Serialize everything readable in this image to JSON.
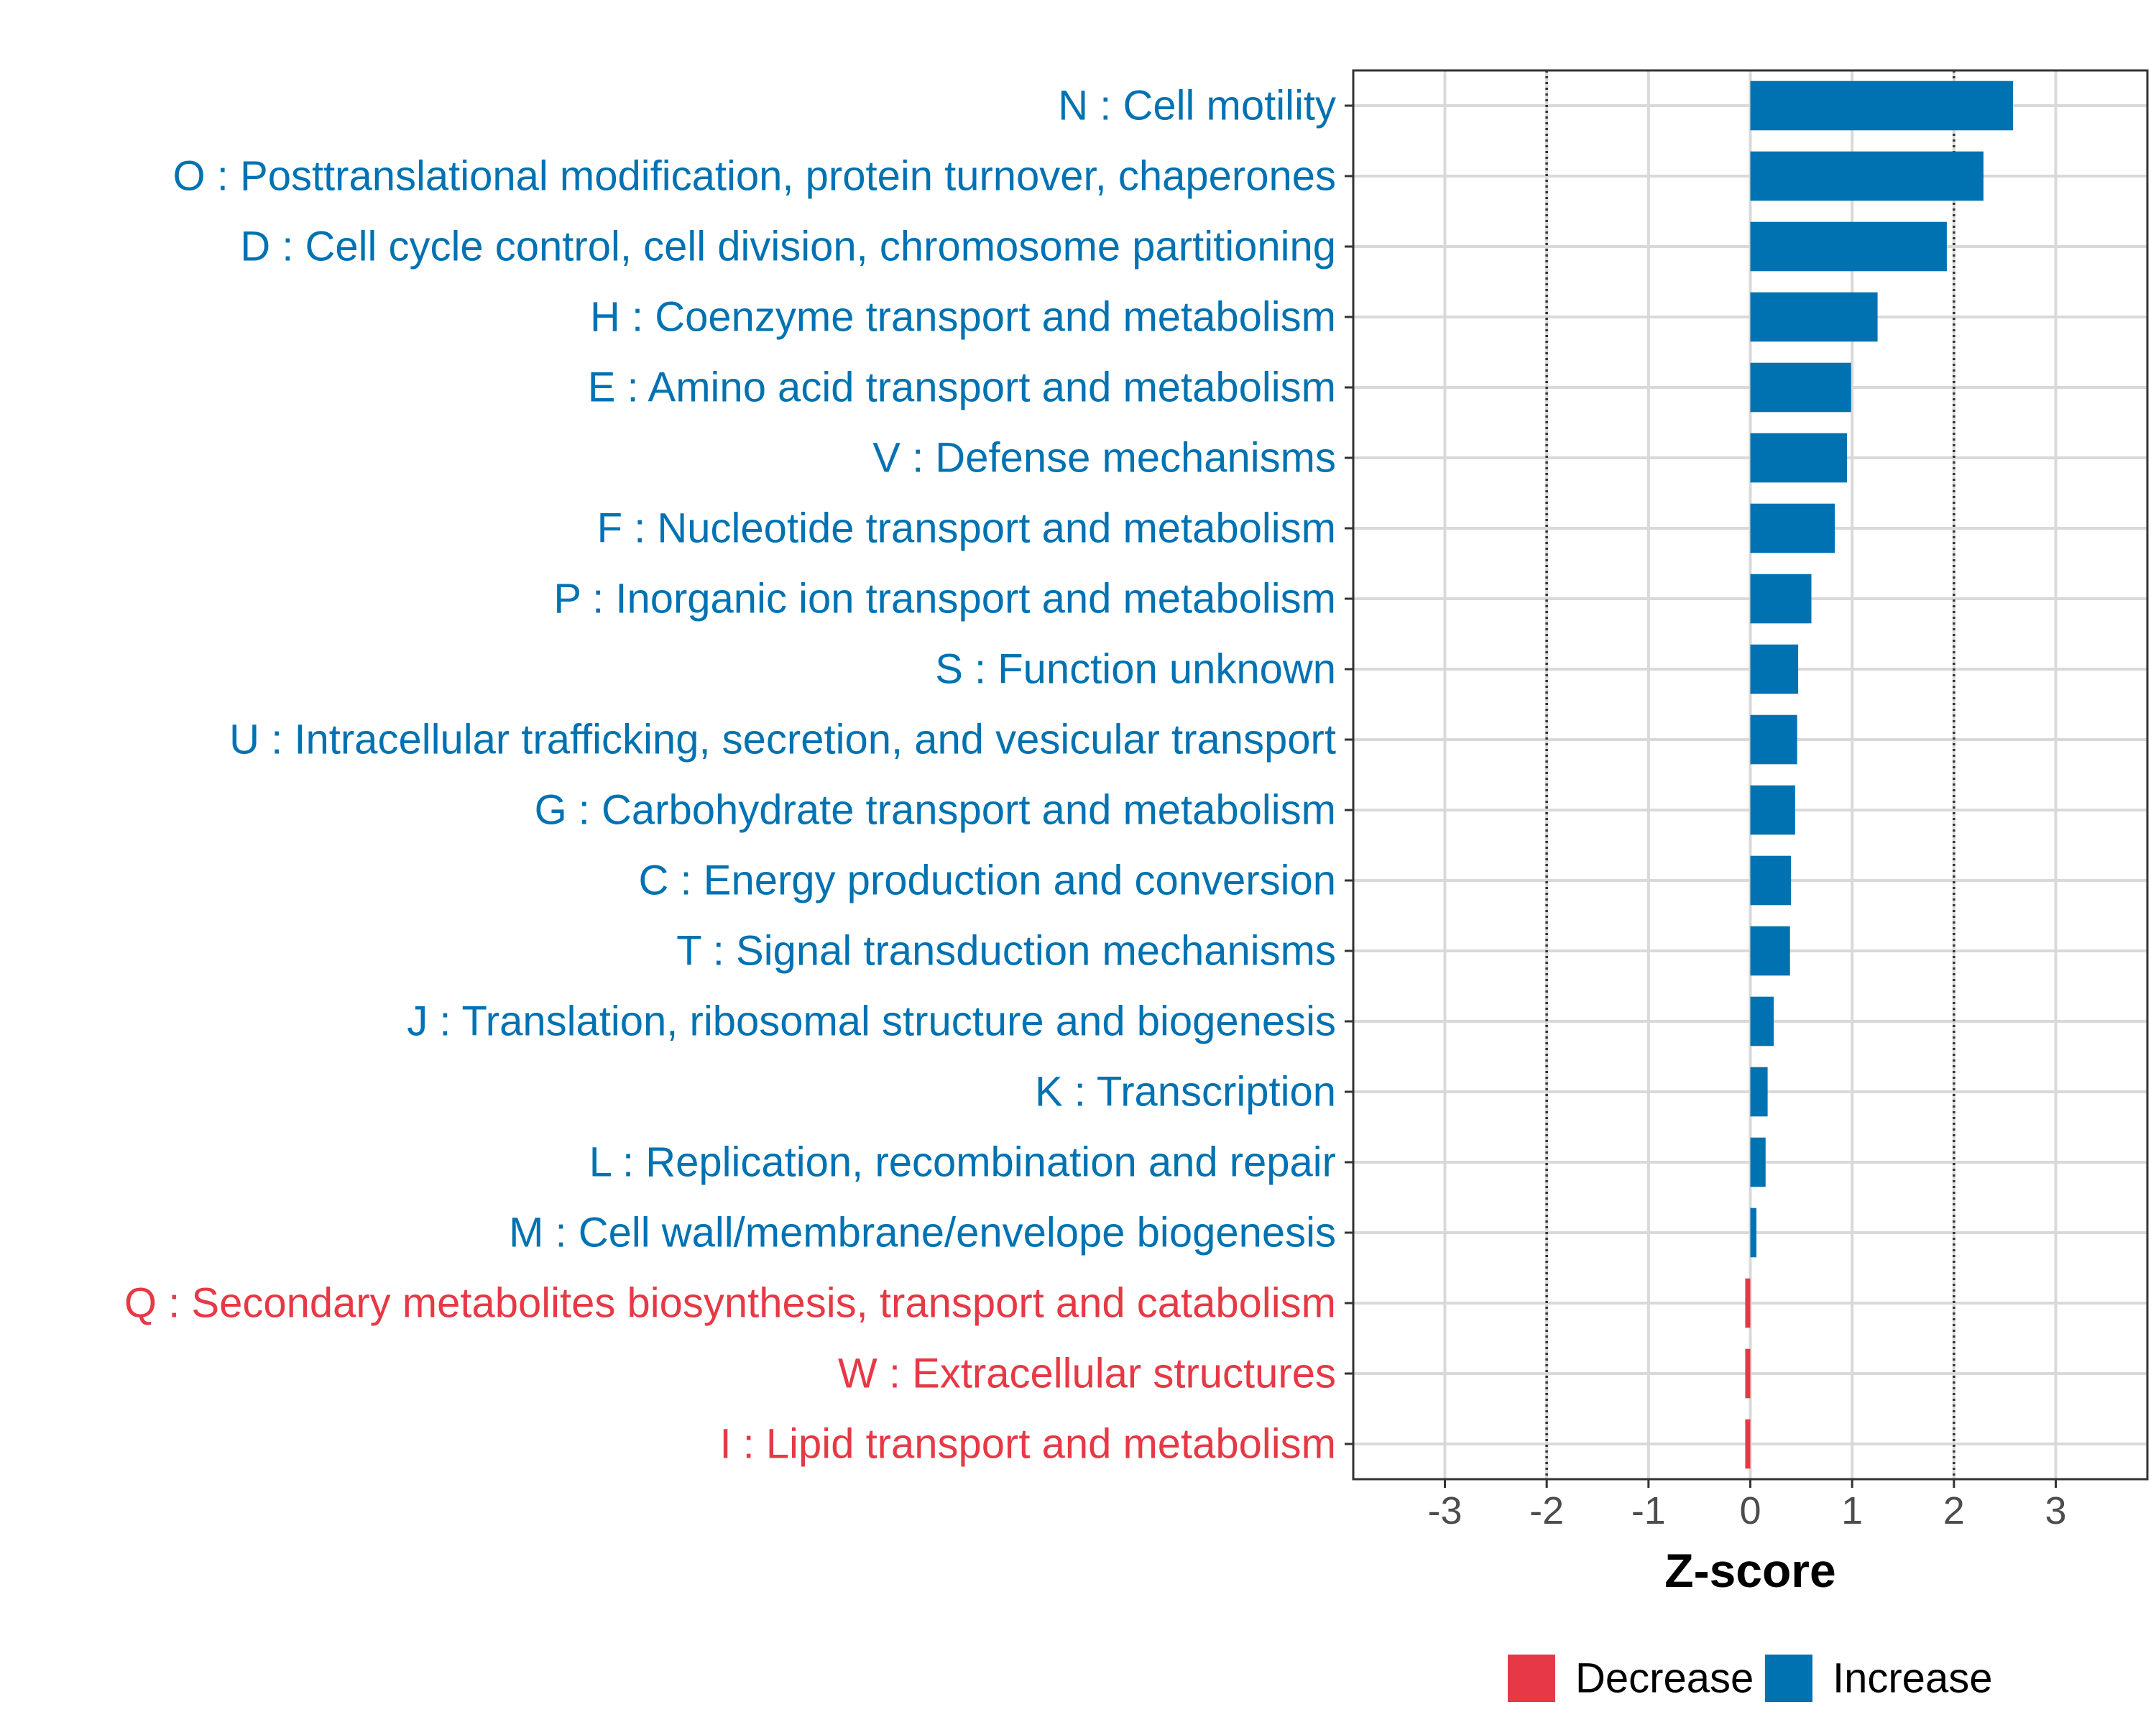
{
  "chart_data": {
    "type": "bar",
    "orientation": "horizontal",
    "categories": [
      "N : Cell motility",
      "O : Posttranslational modification, protein turnover, chaperones",
      "D : Cell cycle control, cell division, chromosome partitioning",
      "H : Coenzyme transport and metabolism",
      "E : Amino acid transport and metabolism",
      "V : Defense mechanisms",
      "F : Nucleotide transport and metabolism",
      "P : Inorganic ion transport and metabolism",
      "S : Function unknown",
      "U : Intracellular trafficking, secretion, and vesicular transport",
      "G : Carbohydrate transport and metabolism",
      "C : Energy production and conversion",
      "T : Signal transduction mechanisms",
      "J : Translation, ribosomal structure and biogenesis",
      "K : Transcription",
      "L : Replication, recombination and repair",
      "M : Cell wall/membrane/envelope biogenesis",
      "Q : Secondary metabolites biosynthesis, transport and catabolism",
      "W : Extracellular structures",
      "I : Lipid transport and metabolism"
    ],
    "values": [
      2.58,
      2.29,
      1.93,
      1.25,
      0.99,
      0.95,
      0.83,
      0.6,
      0.47,
      0.46,
      0.44,
      0.4,
      0.39,
      0.23,
      0.17,
      0.15,
      0.06,
      -0.05,
      -0.05,
      -0.05
    ],
    "groups": [
      "Increase",
      "Increase",
      "Increase",
      "Increase",
      "Increase",
      "Increase",
      "Increase",
      "Increase",
      "Increase",
      "Increase",
      "Increase",
      "Increase",
      "Increase",
      "Increase",
      "Increase",
      "Increase",
      "Increase",
      "Decrease",
      "Decrease",
      "Decrease"
    ],
    "xlabel": "Z-score",
    "ylabel": "",
    "xlim": [
      -3.9,
      3.9
    ],
    "xticks": [
      -3,
      -2,
      -1,
      0,
      1,
      2,
      3
    ],
    "xtick_labels": [
      "-3",
      "-2",
      "-1",
      "0",
      "1",
      "2",
      "3"
    ],
    "reference_lines": [
      -2,
      2
    ],
    "grid": true,
    "legend": {
      "placement": "bottom",
      "entries": [
        {
          "name": "Decrease",
          "color": "#E63946"
        },
        {
          "name": "Increase",
          "color": "#0072B2"
        }
      ]
    }
  }
}
